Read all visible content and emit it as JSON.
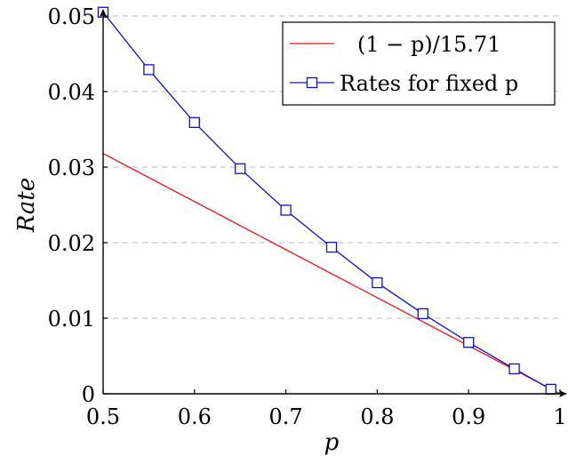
{
  "chart_data": {
    "type": "line",
    "xlabel": "p",
    "ylabel": "Rate",
    "xlim": [
      0.5,
      1
    ],
    "ylim": [
      0,
      0.05
    ],
    "x_ticks": [
      {
        "value": 0.5,
        "label": "0.5"
      },
      {
        "value": 0.6,
        "label": "0.6"
      },
      {
        "value": 0.7,
        "label": "0.7"
      },
      {
        "value": 0.8,
        "label": "0.8"
      },
      {
        "value": 0.9,
        "label": "0.9"
      },
      {
        "value": 1,
        "label": "1"
      }
    ],
    "y_ticks": [
      {
        "value": 0,
        "label": "0"
      },
      {
        "value": 0.01,
        "label": "0.01"
      },
      {
        "value": 0.02,
        "label": "0.02"
      },
      {
        "value": 0.03,
        "label": "0.03"
      },
      {
        "value": 0.04,
        "label": "0.04"
      },
      {
        "value": 0.05,
        "label": "0.05"
      }
    ],
    "grid": "horizontal-dashed",
    "legend_position": "top-right",
    "series": [
      {
        "name": "(1 − p)/15.71",
        "color": "#e8141a",
        "marker": "none",
        "x": [
          0.5,
          1
        ],
        "y": [
          0.0318,
          0
        ]
      },
      {
        "name": "Rates for fixed p",
        "color": "#1010c8",
        "marker": "square",
        "x": [
          0.5,
          0.55,
          0.6,
          0.65,
          0.7,
          0.75,
          0.8,
          0.85,
          0.9,
          0.95,
          0.99
        ],
        "y": [
          0.0505,
          0.0429,
          0.0359,
          0.0298,
          0.0243,
          0.0194,
          0.0147,
          0.0106,
          0.0068,
          0.0033,
          0.0006
        ]
      }
    ]
  }
}
